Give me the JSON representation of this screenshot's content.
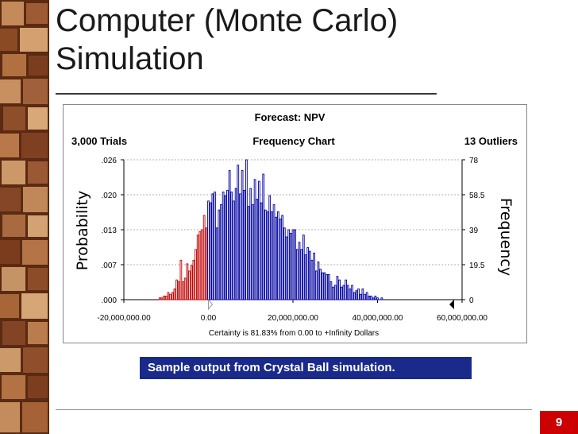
{
  "slide": {
    "title_line1": "Computer (Monte Carlo)",
    "title_line2": "Simulation",
    "caption": "Sample output from Crystal Ball simulation.",
    "page_number": "9"
  },
  "colors": {
    "below_certainty": "#c00000",
    "above_certainty": "#0000a0",
    "caption_bg": "#1a2a8a",
    "page_badge": "#cc0000"
  },
  "chart_data": {
    "type": "bar",
    "title": "Forecast: NPV",
    "subtitle": "Frequency Chart",
    "trials_label": "3,000 Trials",
    "outliers_label": "13 Outliers",
    "ylabel_left": "Probability",
    "ylabel_right": "Frequency",
    "left_ticks": [
      ".000",
      ".007",
      ".013",
      ".020",
      ".026"
    ],
    "right_ticks": [
      "0",
      "19.5",
      "39",
      "58.5",
      "78"
    ],
    "x_tick_labels": [
      "-20,000,000.00",
      "0.00",
      "20,000,000.00",
      "40,000,000.00",
      "60,000,000.00"
    ],
    "x_tick_values": [
      -20000000,
      0,
      20000000,
      40000000,
      60000000
    ],
    "certainty_text": "Certainty is 81.83% from 0.00 to +Infinity Dollars",
    "ylim": [
      0,
      78
    ],
    "xlim": [
      -20000000,
      60000000
    ],
    "certainty_from": 0,
    "bars": [
      {
        "x": -11500000,
        "y": 1
      },
      {
        "x": -11000000,
        "y": 1
      },
      {
        "x": -10500000,
        "y": 2
      },
      {
        "x": -10000000,
        "y": 2
      },
      {
        "x": -9500000,
        "y": 4
      },
      {
        "x": -9000000,
        "y": 3
      },
      {
        "x": -8500000,
        "y": 4
      },
      {
        "x": -8000000,
        "y": 6
      },
      {
        "x": -7500000,
        "y": 11
      },
      {
        "x": -7000000,
        "y": 10
      },
      {
        "x": -6500000,
        "y": 22
      },
      {
        "x": -6000000,
        "y": 10
      },
      {
        "x": -5500000,
        "y": 12
      },
      {
        "x": -5000000,
        "y": 20
      },
      {
        "x": -4500000,
        "y": 16
      },
      {
        "x": -4000000,
        "y": 19
      },
      {
        "x": -3500000,
        "y": 22
      },
      {
        "x": -3000000,
        "y": 28
      },
      {
        "x": -2500000,
        "y": 36
      },
      {
        "x": -2000000,
        "y": 38
      },
      {
        "x": -1500000,
        "y": 39
      },
      {
        "x": -1000000,
        "y": 47
      },
      {
        "x": -500000,
        "y": 40
      },
      {
        "x": 0,
        "y": 55
      },
      {
        "x": 500000,
        "y": 54
      },
      {
        "x": 1000000,
        "y": 59
      },
      {
        "x": 1500000,
        "y": 60
      },
      {
        "x": 2000000,
        "y": 40
      },
      {
        "x": 2500000,
        "y": 50
      },
      {
        "x": 3000000,
        "y": 53
      },
      {
        "x": 3500000,
        "y": 60
      },
      {
        "x": 4000000,
        "y": 58
      },
      {
        "x": 4500000,
        "y": 61
      },
      {
        "x": 5000000,
        "y": 72
      },
      {
        "x": 5500000,
        "y": 60
      },
      {
        "x": 6000000,
        "y": 55
      },
      {
        "x": 6500000,
        "y": 62
      },
      {
        "x": 7000000,
        "y": 75
      },
      {
        "x": 7500000,
        "y": 59
      },
      {
        "x": 8000000,
        "y": 72
      },
      {
        "x": 8500000,
        "y": 61
      },
      {
        "x": 9000000,
        "y": 78
      },
      {
        "x": 9500000,
        "y": 52
      },
      {
        "x": 10000000,
        "y": 62
      },
      {
        "x": 10500000,
        "y": 53
      },
      {
        "x": 11000000,
        "y": 67
      },
      {
        "x": 11500000,
        "y": 56
      },
      {
        "x": 12000000,
        "y": 66
      },
      {
        "x": 12500000,
        "y": 54
      },
      {
        "x": 13000000,
        "y": 70
      },
      {
        "x": 13500000,
        "y": 50
      },
      {
        "x": 14000000,
        "y": 49
      },
      {
        "x": 14500000,
        "y": 58
      },
      {
        "x": 15000000,
        "y": 49
      },
      {
        "x": 15500000,
        "y": 53
      },
      {
        "x": 16000000,
        "y": 46
      },
      {
        "x": 16500000,
        "y": 49
      },
      {
        "x": 17000000,
        "y": 45
      },
      {
        "x": 17500000,
        "y": 47
      },
      {
        "x": 18000000,
        "y": 40
      },
      {
        "x": 18500000,
        "y": 35
      },
      {
        "x": 19000000,
        "y": 39
      },
      {
        "x": 19500000,
        "y": 37
      },
      {
        "x": 20000000,
        "y": 39
      },
      {
        "x": 20500000,
        "y": 39
      },
      {
        "x": 21000000,
        "y": 28
      },
      {
        "x": 21500000,
        "y": 32
      },
      {
        "x": 22000000,
        "y": 28
      },
      {
        "x": 22500000,
        "y": 36
      },
      {
        "x": 23000000,
        "y": 25
      },
      {
        "x": 23500000,
        "y": 29
      },
      {
        "x": 24000000,
        "y": 27
      },
      {
        "x": 24500000,
        "y": 22
      },
      {
        "x": 25000000,
        "y": 26
      },
      {
        "x": 25500000,
        "y": 16
      },
      {
        "x": 26000000,
        "y": 21
      },
      {
        "x": 26500000,
        "y": 17
      },
      {
        "x": 27000000,
        "y": 15
      },
      {
        "x": 27500000,
        "y": 15
      },
      {
        "x": 28000000,
        "y": 14
      },
      {
        "x": 28500000,
        "y": 14
      },
      {
        "x": 29000000,
        "y": 10
      },
      {
        "x": 29500000,
        "y": 7
      },
      {
        "x": 30000000,
        "y": 8
      },
      {
        "x": 30500000,
        "y": 13
      },
      {
        "x": 31000000,
        "y": 11
      },
      {
        "x": 31500000,
        "y": 7
      },
      {
        "x": 32000000,
        "y": 8
      },
      {
        "x": 32500000,
        "y": 11
      },
      {
        "x": 33000000,
        "y": 8
      },
      {
        "x": 33500000,
        "y": 6
      },
      {
        "x": 34000000,
        "y": 8
      },
      {
        "x": 34500000,
        "y": 4
      },
      {
        "x": 35000000,
        "y": 5
      },
      {
        "x": 35500000,
        "y": 6
      },
      {
        "x": 36000000,
        "y": 3
      },
      {
        "x": 36500000,
        "y": 6
      },
      {
        "x": 37000000,
        "y": 3
      },
      {
        "x": 37500000,
        "y": 4
      },
      {
        "x": 38000000,
        "y": 2
      },
      {
        "x": 38500000,
        "y": 2
      },
      {
        "x": 39000000,
        "y": 1
      },
      {
        "x": 39500000,
        "y": 2
      },
      {
        "x": 40000000,
        "y": 1
      },
      {
        "x": 41000000,
        "y": 1
      }
    ],
    "grid": true,
    "legend": "none"
  }
}
